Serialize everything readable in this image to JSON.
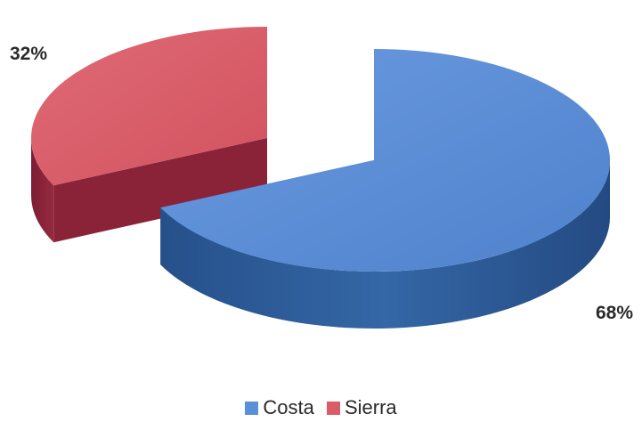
{
  "chart_data": {
    "type": "pie",
    "style": "3d-exploded",
    "title": "",
    "series": [
      {
        "name": "Costa",
        "value": 68,
        "label": "68%",
        "top_color": "#5b8fd8",
        "side_color": "#2d5a96"
      },
      {
        "name": "Sierra",
        "value": 32,
        "label": "32%",
        "top_color": "#d95c68",
        "side_color": "#8a2238"
      }
    ],
    "legend_position": "bottom"
  }
}
